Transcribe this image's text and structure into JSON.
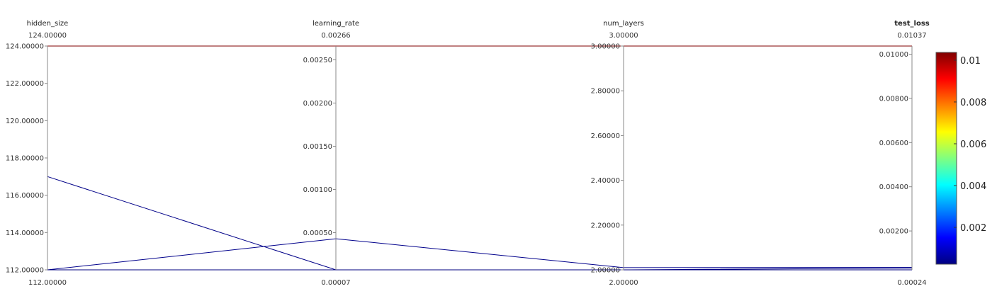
{
  "chart_data": {
    "type": "parallel_coordinates",
    "axes": [
      {
        "name": "hidden_size",
        "range": [
          112.0,
          124.0
        ],
        "top_label": "124.00000",
        "bottom_label": "112.00000",
        "ticks": [
          {
            "value": 124.0,
            "label": "124.00000"
          },
          {
            "value": 122.0,
            "label": "122.00000"
          },
          {
            "value": 120.0,
            "label": "120.00000"
          },
          {
            "value": 118.0,
            "label": "118.00000"
          },
          {
            "value": 116.0,
            "label": "116.00000"
          },
          {
            "value": 114.0,
            "label": "114.00000"
          },
          {
            "value": 112.0,
            "label": "112.00000"
          }
        ],
        "highlight": false
      },
      {
        "name": "learning_rate",
        "range": [
          7e-05,
          0.00266
        ],
        "top_label": "0.00266",
        "bottom_label": "0.00007",
        "ticks": [
          {
            "value": 0.0025,
            "label": "0.00250"
          },
          {
            "value": 0.002,
            "label": "0.00200"
          },
          {
            "value": 0.0015,
            "label": "0.00150"
          },
          {
            "value": 0.001,
            "label": "0.00100"
          },
          {
            "value": 0.0005,
            "label": "0.00050"
          }
        ],
        "highlight": false
      },
      {
        "name": "num_layers",
        "range": [
          2.0,
          3.0
        ],
        "top_label": "3.00000",
        "bottom_label": "2.00000",
        "ticks": [
          {
            "value": 3.0,
            "label": "3.00000"
          },
          {
            "value": 2.8,
            "label": "2.80000"
          },
          {
            "value": 2.6,
            "label": "2.60000"
          },
          {
            "value": 2.4,
            "label": "2.40000"
          },
          {
            "value": 2.2,
            "label": "2.20000"
          },
          {
            "value": 2.0,
            "label": "2.00000"
          }
        ],
        "highlight": false
      },
      {
        "name": "test_loss",
        "range": [
          0.00024,
          0.01037
        ],
        "top_label": "0.01037",
        "bottom_label": "0.00024",
        "ticks": [
          {
            "value": 0.01,
            "label": "0.01000"
          },
          {
            "value": 0.008,
            "label": "0.00800"
          },
          {
            "value": 0.006,
            "label": "0.00600"
          },
          {
            "value": 0.004,
            "label": "0.00400"
          },
          {
            "value": 0.002,
            "label": "0.00200"
          }
        ],
        "highlight": true
      }
    ],
    "series": [
      {
        "values": [
          124.0,
          0.00266,
          3.0,
          0.01037
        ]
      },
      {
        "values": [
          117.0,
          7e-05,
          2.0,
          0.00032
        ]
      },
      {
        "values": [
          112.0,
          0.00043,
          2.01,
          0.00035
        ]
      },
      {
        "values": [
          112.0,
          7e-05,
          2.0,
          0.00024
        ]
      }
    ],
    "colorscale": {
      "colors": [
        "#000080",
        "#0000ff",
        "#0080ff",
        "#00ffff",
        "#80ff80",
        "#ffff00",
        "#ff8000",
        "#ff0000",
        "#800000"
      ],
      "ticks": [
        {
          "value": 0.002,
          "label": "0.002"
        },
        {
          "value": 0.004,
          "label": "0.004"
        },
        {
          "value": 0.006,
          "label": "0.006"
        },
        {
          "value": 0.008,
          "label": "0.008"
        },
        {
          "value": 0.01,
          "label": "0.01"
        }
      ]
    },
    "colors": {
      "highlight_title": "#006400",
      "axis_line": "#888888",
      "tick_mark": "#888888"
    }
  }
}
